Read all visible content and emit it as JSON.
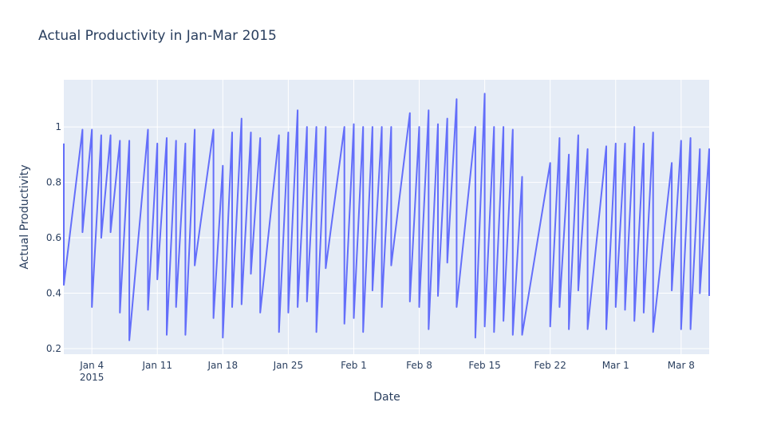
{
  "chart_data": {
    "type": "line",
    "title": "Actual Productivity in Jan-Mar 2015",
    "xlabel": "Date",
    "ylabel": "Actual Productivity",
    "xlim": [
      "2015-01-01",
      "2015-03-11"
    ],
    "ylim": [
      0.18,
      1.17
    ],
    "grid": true,
    "x_ticks": [
      {
        "date": "2015-01-04",
        "label": "Jan 4",
        "sublabel": "2015"
      },
      {
        "date": "2015-01-11",
        "label": "Jan 11"
      },
      {
        "date": "2015-01-18",
        "label": "Jan 18"
      },
      {
        "date": "2015-01-25",
        "label": "Jan 25"
      },
      {
        "date": "2015-02-01",
        "label": "Feb 1"
      },
      {
        "date": "2015-02-08",
        "label": "Feb 8"
      },
      {
        "date": "2015-02-15",
        "label": "Feb 15"
      },
      {
        "date": "2015-02-22",
        "label": "Feb 22"
      },
      {
        "date": "2015-03-01",
        "label": "Mar 1"
      },
      {
        "date": "2015-03-08",
        "label": "Mar 8"
      }
    ],
    "y_ticks": [
      {
        "value": 0.2,
        "label": "0.2"
      },
      {
        "value": 0.4,
        "label": "0.4"
      },
      {
        "value": 0.6,
        "label": "0.6"
      },
      {
        "value": 0.8,
        "label": "0.8"
      },
      {
        "value": 1.0,
        "label": "1"
      }
    ],
    "series": [
      {
        "color": "#636efa",
        "points": [
          [
            "2015-01-01",
            0.94
          ],
          [
            "2015-01-01",
            0.43
          ],
          [
            "2015-01-03",
            0.99
          ],
          [
            "2015-01-03",
            0.62
          ],
          [
            "2015-01-04",
            0.99
          ],
          [
            "2015-01-04",
            0.35
          ],
          [
            "2015-01-05",
            0.97
          ],
          [
            "2015-01-05",
            0.6
          ],
          [
            "2015-01-06",
            0.97
          ],
          [
            "2015-01-06",
            0.62
          ],
          [
            "2015-01-07",
            0.95
          ],
          [
            "2015-01-07",
            0.33
          ],
          [
            "2015-01-08",
            0.95
          ],
          [
            "2015-01-08",
            0.23
          ],
          [
            "2015-01-10",
            0.99
          ],
          [
            "2015-01-10",
            0.34
          ],
          [
            "2015-01-11",
            0.94
          ],
          [
            "2015-01-11",
            0.45
          ],
          [
            "2015-01-12",
            0.96
          ],
          [
            "2015-01-12",
            0.25
          ],
          [
            "2015-01-13",
            0.95
          ],
          [
            "2015-01-13",
            0.35
          ],
          [
            "2015-01-14",
            0.94
          ],
          [
            "2015-01-14",
            0.25
          ],
          [
            "2015-01-15",
            0.99
          ],
          [
            "2015-01-15",
            0.5
          ],
          [
            "2015-01-17",
            0.99
          ],
          [
            "2015-01-17",
            0.31
          ],
          [
            "2015-01-18",
            0.86
          ],
          [
            "2015-01-18",
            0.24
          ],
          [
            "2015-01-19",
            0.98
          ],
          [
            "2015-01-19",
            0.35
          ],
          [
            "2015-01-20",
            1.03
          ],
          [
            "2015-01-20",
            0.36
          ],
          [
            "2015-01-21",
            0.98
          ],
          [
            "2015-01-21",
            0.47
          ],
          [
            "2015-01-22",
            0.96
          ],
          [
            "2015-01-22",
            0.33
          ],
          [
            "2015-01-24",
            0.97
          ],
          [
            "2015-01-24",
            0.26
          ],
          [
            "2015-01-25",
            0.98
          ],
          [
            "2015-01-25",
            0.33
          ],
          [
            "2015-01-26",
            1.06
          ],
          [
            "2015-01-26",
            0.35
          ],
          [
            "2015-01-27",
            1.0
          ],
          [
            "2015-01-27",
            0.37
          ],
          [
            "2015-01-28",
            1.0
          ],
          [
            "2015-01-28",
            0.26
          ],
          [
            "2015-01-29",
            1.0
          ],
          [
            "2015-01-29",
            0.49
          ],
          [
            "2015-01-31",
            1.0
          ],
          [
            "2015-01-31",
            0.29
          ],
          [
            "2015-02-01",
            1.01
          ],
          [
            "2015-02-01",
            0.31
          ],
          [
            "2015-02-02",
            1.0
          ],
          [
            "2015-02-02",
            0.26
          ],
          [
            "2015-02-03",
            1.0
          ],
          [
            "2015-02-03",
            0.41
          ],
          [
            "2015-02-04",
            1.0
          ],
          [
            "2015-02-04",
            0.35
          ],
          [
            "2015-02-05",
            1.0
          ],
          [
            "2015-02-05",
            0.5
          ],
          [
            "2015-02-07",
            1.05
          ],
          [
            "2015-02-07",
            0.37
          ],
          [
            "2015-02-08",
            1.0
          ],
          [
            "2015-02-08",
            0.35
          ],
          [
            "2015-02-09",
            1.06
          ],
          [
            "2015-02-09",
            0.27
          ],
          [
            "2015-02-10",
            1.01
          ],
          [
            "2015-02-10",
            0.39
          ],
          [
            "2015-02-11",
            1.03
          ],
          [
            "2015-02-11",
            0.51
          ],
          [
            "2015-02-12",
            1.1
          ],
          [
            "2015-02-12",
            0.35
          ],
          [
            "2015-02-14",
            1.0
          ],
          [
            "2015-02-14",
            0.24
          ],
          [
            "2015-02-15",
            1.12
          ],
          [
            "2015-02-15",
            0.28
          ],
          [
            "2015-02-16",
            1.0
          ],
          [
            "2015-02-16",
            0.26
          ],
          [
            "2015-02-17",
            1.0
          ],
          [
            "2015-02-17",
            0.3
          ],
          [
            "2015-02-18",
            0.99
          ],
          [
            "2015-02-18",
            0.25
          ],
          [
            "2015-02-19",
            0.82
          ],
          [
            "2015-02-19",
            0.25
          ],
          [
            "2015-02-22",
            0.87
          ],
          [
            "2015-02-22",
            0.28
          ],
          [
            "2015-02-23",
            0.96
          ],
          [
            "2015-02-23",
            0.35
          ],
          [
            "2015-02-24",
            0.9
          ],
          [
            "2015-02-24",
            0.27
          ],
          [
            "2015-02-25",
            0.97
          ],
          [
            "2015-02-25",
            0.41
          ],
          [
            "2015-02-26",
            0.92
          ],
          [
            "2015-02-26",
            0.27
          ],
          [
            "2015-02-28",
            0.93
          ],
          [
            "2015-02-28",
            0.27
          ],
          [
            "2015-03-01",
            0.94
          ],
          [
            "2015-03-01",
            0.35
          ],
          [
            "2015-03-02",
            0.94
          ],
          [
            "2015-03-02",
            0.34
          ],
          [
            "2015-03-03",
            1.0
          ],
          [
            "2015-03-03",
            0.3
          ],
          [
            "2015-03-04",
            0.94
          ],
          [
            "2015-03-04",
            0.33
          ],
          [
            "2015-03-05",
            0.98
          ],
          [
            "2015-03-05",
            0.26
          ],
          [
            "2015-03-07",
            0.87
          ],
          [
            "2015-03-07",
            0.41
          ],
          [
            "2015-03-08",
            0.95
          ],
          [
            "2015-03-08",
            0.27
          ],
          [
            "2015-03-09",
            0.96
          ],
          [
            "2015-03-09",
            0.27
          ],
          [
            "2015-03-10",
            0.92
          ],
          [
            "2015-03-10",
            0.4
          ],
          [
            "2015-03-11",
            0.92
          ],
          [
            "2015-03-11",
            0.39
          ]
        ]
      }
    ]
  }
}
